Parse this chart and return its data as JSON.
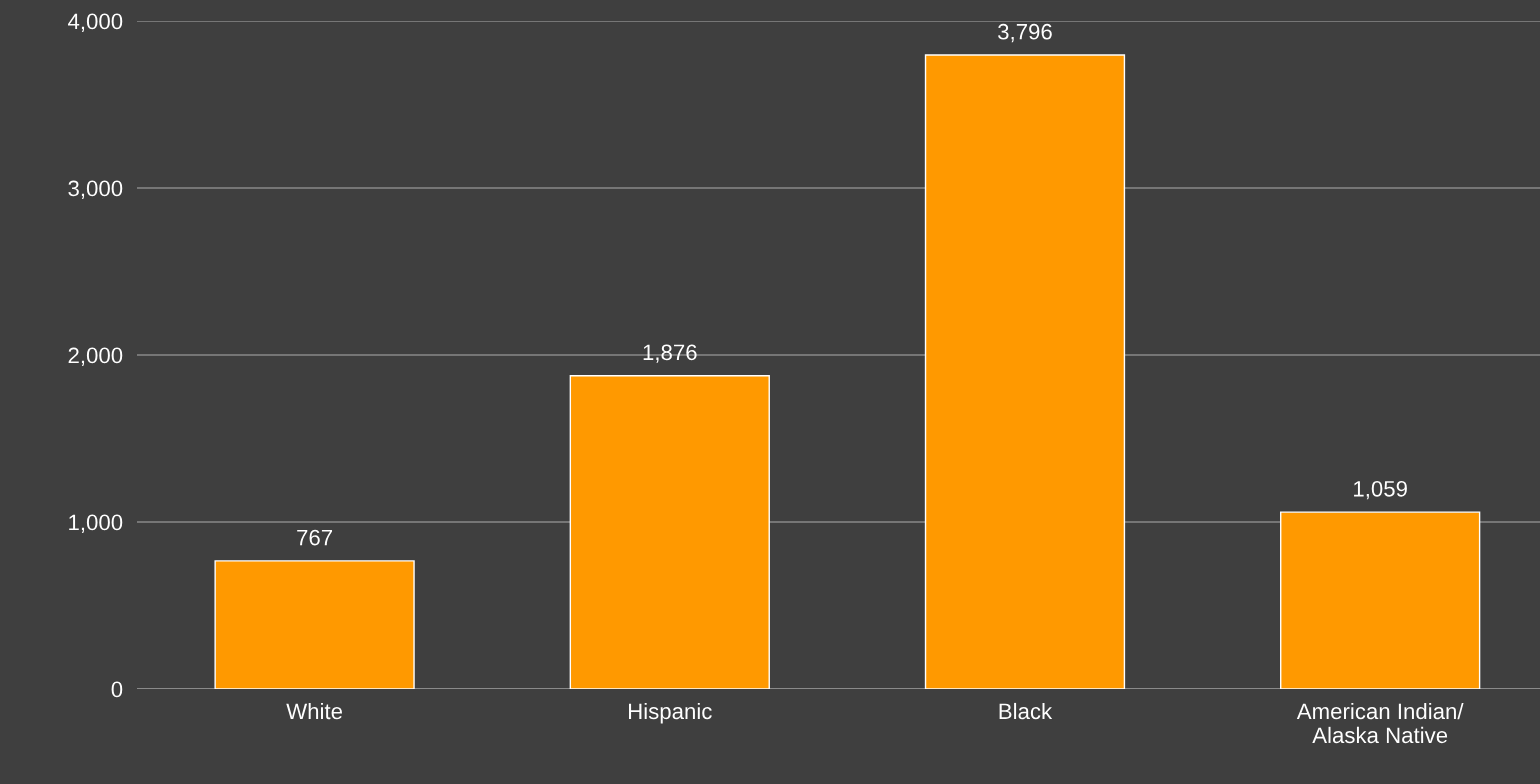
{
  "chart_data": {
    "type": "bar",
    "categories": [
      "White",
      "Hispanic",
      "Black",
      "American Indian/\nAlaska Native"
    ],
    "values": [
      767,
      1876,
      3796,
      1059
    ],
    "color": "#ff9900",
    "ylim": [
      0,
      4000
    ],
    "yticks": [
      {
        "value": 0,
        "label": "0"
      },
      {
        "value": 1000,
        "label": "1,000"
      },
      {
        "value": 2000,
        "label": "2,000"
      },
      {
        "value": 3000,
        "label": "3,000"
      },
      {
        "value": 4000,
        "label": "4,000"
      }
    ],
    "value_labels": [
      "767",
      "1,876",
      "3,796",
      "1,059"
    ],
    "grid": "y",
    "legend": false
  }
}
